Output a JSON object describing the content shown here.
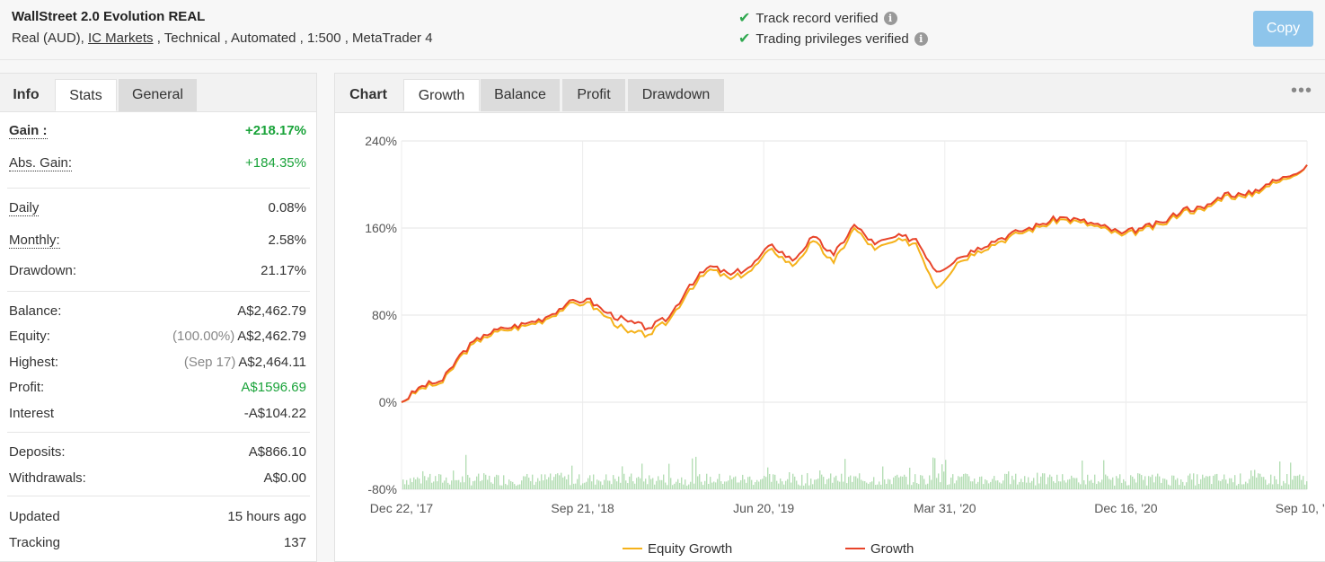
{
  "header": {
    "title": "WallStreet 2.0 Evolution REAL",
    "subtitle_pre": "Real (AUD), ",
    "broker_link": "IC Markets",
    "subtitle_post": " , Technical , Automated , 1:500 , MetaTrader 4",
    "verif_track": "Track record verified",
    "verif_trading": "Trading privileges verified",
    "copy_label": "Copy"
  },
  "left_tabs": [
    "Info",
    "Stats",
    "General"
  ],
  "stats": {
    "gain_label": "Gain :",
    "gain": "+218.17%",
    "abs_gain_label": "Abs. Gain:",
    "abs_gain": "+184.35%",
    "daily_label": "Daily",
    "daily": "0.08%",
    "monthly_label": "Monthly:",
    "monthly": "2.58%",
    "drawdown_label": "Drawdown:",
    "drawdown": "21.17%",
    "balance_label": "Balance:",
    "balance": "A$2,462.79",
    "equity_label": "Equity:",
    "equity_pct": "(100.00%)",
    "equity": "A$2,462.79",
    "highest_label": "Highest:",
    "highest_date": "(Sep 17)",
    "highest": "A$2,464.11",
    "profit_label": "Profit:",
    "profit": "A$1596.69",
    "interest_label": "Interest",
    "interest": "-A$104.22",
    "deposits_label": "Deposits:",
    "deposits": "A$866.10",
    "withdrawals_label": "Withdrawals:",
    "withdrawals": "A$0.00",
    "updated_label": "Updated",
    "updated": "15 hours ago",
    "tracking_label": "Tracking",
    "tracking": "137"
  },
  "chart_tabs": [
    "Chart",
    "Growth",
    "Balance",
    "Profit",
    "Drawdown"
  ],
  "more_label": "•••",
  "colors": {
    "growth": "#e8442a",
    "equity": "#f5b21b",
    "volume": "#a8d8a8",
    "gain_green": "#1aa33a",
    "copy_button": "#8ec5eb"
  },
  "chart_data": {
    "type": "line",
    "title": "",
    "xlabel": "",
    "ylabel": "",
    "ylim": [
      -80,
      240
    ],
    "yticks": [
      "240%",
      "160%",
      "80%",
      "0%",
      "-80%"
    ],
    "ytick_values": [
      240,
      160,
      80,
      0,
      -80
    ],
    "xticks": [
      "Dec 22, '17",
      "Sep 21, '18",
      "Jun 20, '19",
      "Mar 31, '20",
      "Dec 16, '20",
      "Sep 10, '21"
    ],
    "grid": true,
    "legend_position": "bottom",
    "series": [
      {
        "name": "Growth",
        "x": [
          "Dec 22, '17",
          "Feb '18",
          "Mar '18",
          "Apr '18",
          "May '18",
          "Jun '18",
          "Jul '18",
          "Aug '18",
          "Sep 21, '18",
          "Oct '18",
          "Nov '18",
          "Dec '18",
          "Jan '19",
          "Feb '19",
          "Mar '19",
          "Apr '19",
          "May '19",
          "Jun 20, '19",
          "Jul '19",
          "Aug '19",
          "Sep '19",
          "Oct '19",
          "Nov '19",
          "Dec '19",
          "Jan '20",
          "Feb '20",
          "Mar 31, '20",
          "Apr '20",
          "May '20",
          "Jun '20",
          "Jul '20",
          "Aug '20",
          "Sep '20",
          "Oct '20",
          "Nov '20",
          "Dec 16, '20",
          "Jan '21",
          "Feb '21",
          "Mar '21",
          "Apr '21",
          "May '21",
          "Jun '21",
          "Jul '21",
          "Aug '21",
          "Sep 10, '21"
        ],
        "values": [
          0,
          15,
          20,
          47,
          62,
          68,
          72,
          78,
          90,
          95,
          82,
          74,
          68,
          78,
          108,
          125,
          117,
          125,
          145,
          130,
          152,
          135,
          163,
          145,
          152,
          150,
          120,
          132,
          142,
          150,
          157,
          163,
          170,
          167,
          162,
          155,
          160,
          165,
          178,
          178,
          192,
          190,
          200,
          207,
          218
        ]
      },
      {
        "name": "Equity Growth",
        "x": [
          "Dec 22, '17",
          "Feb '18",
          "Mar '18",
          "Apr '18",
          "May '18",
          "Jun '18",
          "Jul '18",
          "Aug '18",
          "Sep 21, '18",
          "Oct '18",
          "Nov '18",
          "Dec '18",
          "Jan '19",
          "Feb '19",
          "Mar '19",
          "Apr '19",
          "May '19",
          "Jun 20, '19",
          "Jul '19",
          "Aug '19",
          "Sep '19",
          "Oct '19",
          "Nov '19",
          "Dec '19",
          "Jan '20",
          "Feb '20",
          "Mar 31, '20",
          "Apr '20",
          "May '20",
          "Jun '20",
          "Jul '20",
          "Aug '20",
          "Sep '20",
          "Oct '20",
          "Nov '20",
          "Dec 16, '20",
          "Jan '21",
          "Feb '21",
          "Mar '21",
          "Apr '21",
          "May '21",
          "Jun '21",
          "Jul '21",
          "Aug '21",
          "Sep 10, '21"
        ],
        "values": [
          0,
          13,
          18,
          45,
          60,
          66,
          70,
          76,
          88,
          92,
          78,
          64,
          62,
          75,
          104,
          122,
          113,
          121,
          141,
          125,
          148,
          128,
          160,
          140,
          148,
          146,
          105,
          128,
          139,
          147,
          155,
          161,
          168,
          165,
          160,
          153,
          158,
          163,
          176,
          176,
          190,
          188,
          198,
          205,
          218
        ]
      }
    ]
  }
}
